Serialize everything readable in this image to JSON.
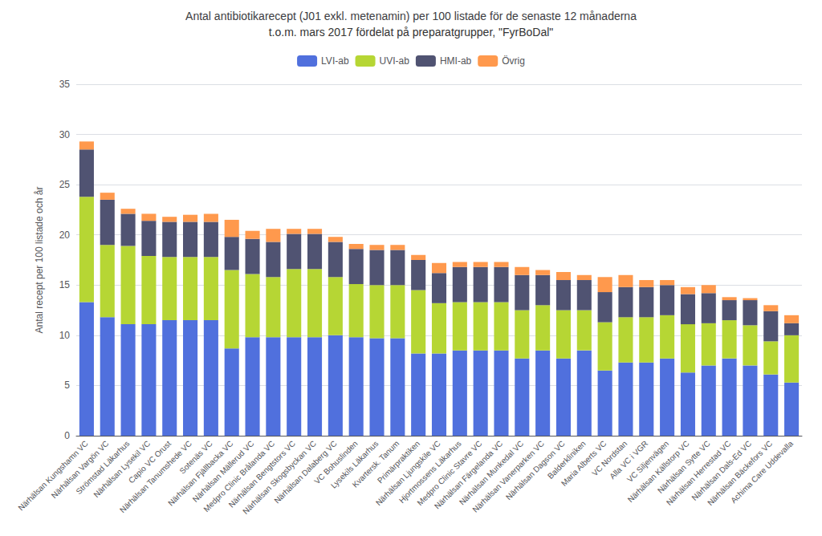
{
  "chart_data": {
    "type": "bar",
    "stacked": true,
    "title": "Antal antibiotikarecept (J01 exkl. metenamin) per 100 listade för de senaste 12 månaderna",
    "subtitle": "t.o.m. mars 2017 fördelat på preparatgrupper, \"FyrBoDal\"",
    "ylabel": "Antal recept per 100 listade och år",
    "categories": [
      "Närhälsan Kungshamn VC",
      "Närhälsan Vargön VC",
      "Strömstad Läkarhus",
      "Närhälsan Lysekil VC",
      "Capio VC Orust",
      "Närhälsan Tanumshede VC",
      "Sotenäs VC",
      "Närhälsan Fjällbacka VC",
      "Närhälsan Mällerud VC",
      "Medpro Clinic Brålanda VC",
      "Närhälsan Bengtstors VC",
      "Närhälsan Skogsbyckan VC",
      "Närhälsan Dalaberg VC",
      "VC Bohuslinden",
      "Lysekils Läkarhus",
      "Kvartersk. Tanum",
      "Primärpraktiken",
      "Närhälsan Ljungskile VC",
      "Hjortmossens Läkarhus",
      "Medpro Clinic Stavre VC",
      "Närhälsan Färgelanda VC",
      "Närhälsan Munkedal VC",
      "Närhälsan Vanerparken VC",
      "Närhälsan Dagson VC",
      "Balderkliniken",
      "Maria Alberts VC",
      "VC Nordstan",
      "Alla VC i VGR",
      "VC Siljenvägen",
      "Närhälsan Källstorp VC",
      "Närhälsan Sytte VC",
      "Närhälsan Herrestad VC",
      "Närhälsan Dals-Ed VC",
      "Närhälsan Bäckefors VC",
      "Achima Care Uddevalla"
    ],
    "series": [
      {
        "name": "LVI-ab",
        "values": [
          13.3,
          11.8,
          11.1,
          11.1,
          11.5,
          11.5,
          11.5,
          8.7,
          9.8,
          9.8,
          9.8,
          9.8,
          10.0,
          9.8,
          9.7,
          9.7,
          8.2,
          8.2,
          8.5,
          8.5,
          8.5,
          7.7,
          8.5,
          7.7,
          8.5,
          6.5,
          7.3,
          7.3,
          7.7,
          6.3,
          7.0,
          7.7,
          7.0,
          6.1,
          5.3
        ]
      },
      {
        "name": "UVI-ab",
        "values": [
          10.5,
          7.2,
          7.8,
          6.8,
          6.3,
          6.3,
          6.3,
          7.8,
          6.3,
          6.0,
          6.8,
          6.8,
          5.8,
          5.3,
          5.3,
          5.3,
          6.3,
          5.0,
          4.8,
          4.8,
          4.8,
          4.8,
          4.5,
          4.8,
          4.0,
          4.8,
          4.5,
          4.5,
          4.3,
          4.8,
          4.2,
          3.8,
          4.0,
          3.3,
          4.7
        ]
      },
      {
        "name": "HMI-ab",
        "values": [
          4.7,
          4.5,
          3.2,
          3.5,
          3.5,
          3.5,
          3.5,
          3.3,
          3.5,
          3.5,
          3.5,
          3.5,
          3.5,
          3.5,
          3.5,
          3.5,
          3.0,
          3.0,
          3.5,
          3.5,
          3.5,
          3.5,
          3.0,
          3.0,
          3.0,
          3.0,
          3.0,
          3.0,
          3.0,
          3.0,
          3.0,
          2.0,
          2.5,
          3.0,
          1.2
        ]
      },
      {
        "name": "Övrig",
        "values": [
          0.8,
          0.7,
          0.5,
          0.7,
          0.5,
          0.7,
          0.8,
          1.7,
          0.8,
          1.3,
          0.5,
          0.5,
          0.5,
          0.5,
          0.5,
          0.5,
          0.5,
          1.0,
          0.5,
          0.5,
          0.5,
          0.8,
          0.5,
          0.8,
          0.5,
          1.5,
          1.2,
          0.7,
          0.5,
          0.7,
          0.8,
          0.3,
          0.2,
          0.6,
          0.8
        ]
      }
    ],
    "ylim": [
      0,
      35
    ],
    "yticks": [
      0,
      5,
      10,
      15,
      20,
      25,
      30,
      35
    ],
    "grid": true,
    "legend": "top"
  }
}
